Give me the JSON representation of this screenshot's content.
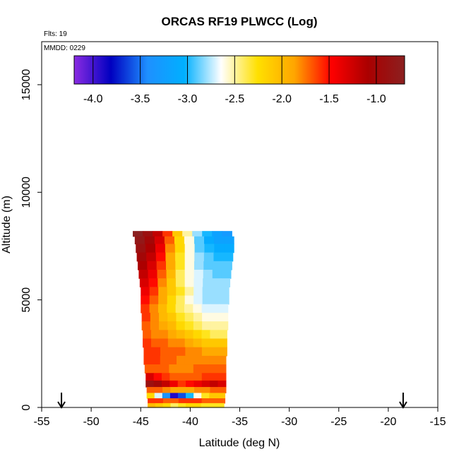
{
  "chart_data": {
    "type": "heatmap",
    "title": "ORCAS RF19 PLWCC (Log)",
    "flights_label": "Flts: 19",
    "date_label": "MMDD: 0229",
    "xlabel": "Latitude (deg N)",
    "ylabel": "Altitude (m)",
    "xlim": [
      -55,
      -15
    ],
    "ylim": [
      0,
      17000
    ],
    "x_ticks": [
      -55,
      -50,
      -45,
      -40,
      -35,
      -30,
      -25,
      -20,
      -15
    ],
    "x_tick_labels": [
      "-55",
      "-50",
      "-45",
      "-40",
      "-35",
      "-30",
      "-25",
      "-20",
      "-15"
    ],
    "y_ticks": [
      0,
      5000,
      10000,
      15000
    ],
    "y_tick_labels": [
      "0",
      "5000",
      "10000",
      "15000"
    ],
    "colorbar": {
      "range": [
        -4.2,
        -0.7
      ],
      "ticks": [
        -4.0,
        -3.5,
        -3.0,
        -2.5,
        -2.0,
        -1.5,
        -1.0
      ],
      "tick_labels": [
        "-4.0",
        "-3.5",
        "-3.0",
        "-2.5",
        "-2.0",
        "-1.5",
        "-1.0"
      ],
      "colors": [
        "#8a2be2",
        "#0000c0",
        "#1e90ff",
        "#00b0ff",
        "#ffffff",
        "#ffe000",
        "#ffa500",
        "#ff0000",
        "#aa0000",
        "#8b2020"
      ]
    },
    "arrows_lat": [
      -53,
      -18.5
    ],
    "profile": {
      "alt_top": 8200,
      "rows": [
        {
          "alt": 8100,
          "lat_min": -45.8,
          "lat_max": -35.8,
          "values": [
            -0.7,
            -0.9,
            -1.2,
            -1.6,
            -2.1,
            -2.5,
            -2.8,
            -3.0,
            -3.2,
            -3.3
          ]
        },
        {
          "alt": 7800,
          "lat_min": -45.6,
          "lat_max": -35.6,
          "values": [
            -0.8,
            -1.0,
            -1.3,
            -1.7,
            -2.2,
            -2.6,
            -2.9,
            -3.1,
            -3.2,
            -3.2
          ]
        },
        {
          "alt": 7400,
          "lat_min": -45.5,
          "lat_max": -35.6,
          "values": [
            -0.9,
            -1.1,
            -1.4,
            -1.8,
            -2.2,
            -2.6,
            -2.9,
            -3.0,
            -3.1,
            -3.1
          ]
        },
        {
          "alt": 7000,
          "lat_min": -45.4,
          "lat_max": -35.7,
          "values": [
            -1.0,
            -1.2,
            -1.5,
            -1.9,
            -2.3,
            -2.6,
            -2.8,
            -2.9,
            -3.0,
            -3.0
          ]
        },
        {
          "alt": 6600,
          "lat_min": -45.3,
          "lat_max": -35.8,
          "values": [
            -1.1,
            -1.3,
            -1.6,
            -1.9,
            -2.3,
            -2.6,
            -2.8,
            -2.9,
            -2.9,
            -2.9
          ]
        },
        {
          "alt": 6200,
          "lat_min": -45.2,
          "lat_max": -35.9,
          "values": [
            -1.2,
            -1.4,
            -1.7,
            -2.0,
            -2.4,
            -2.6,
            -2.7,
            -2.8,
            -2.9,
            -2.9
          ]
        },
        {
          "alt": 5800,
          "lat_min": -45.1,
          "lat_max": -36.0,
          "values": [
            -1.3,
            -1.5,
            -1.8,
            -2.1,
            -2.4,
            -2.6,
            -2.7,
            -2.8,
            -2.8,
            -2.8
          ]
        },
        {
          "alt": 5400,
          "lat_min": -45.0,
          "lat_max": -36.1,
          "values": [
            -1.4,
            -1.6,
            -1.9,
            -2.1,
            -2.3,
            -2.5,
            -2.7,
            -2.8,
            -2.8,
            -2.8
          ]
        },
        {
          "alt": 5000,
          "lat_min": -45.0,
          "lat_max": -36.1,
          "values": [
            -1.5,
            -1.7,
            -1.9,
            -2.2,
            -2.4,
            -2.6,
            -2.7,
            -2.8,
            -2.8,
            -2.8
          ]
        },
        {
          "alt": 4600,
          "lat_min": -45.0,
          "lat_max": -36.2,
          "values": [
            -1.6,
            -1.8,
            -2.0,
            -2.2,
            -2.4,
            -2.5,
            -2.6,
            -2.7,
            -2.7,
            -2.7
          ]
        },
        {
          "alt": 4200,
          "lat_min": -44.9,
          "lat_max": -36.2,
          "values": [
            -1.6,
            -1.8,
            -2.0,
            -2.1,
            -2.3,
            -2.4,
            -2.5,
            -2.6,
            -2.6,
            -2.6
          ]
        },
        {
          "alt": 3800,
          "lat_min": -44.9,
          "lat_max": -36.2,
          "values": [
            -1.7,
            -1.8,
            -1.9,
            -2.0,
            -2.2,
            -2.3,
            -2.4,
            -2.5,
            -2.5,
            -2.5
          ]
        },
        {
          "alt": 3400,
          "lat_min": -44.8,
          "lat_max": -36.3,
          "values": [
            -1.7,
            -1.8,
            -1.8,
            -1.9,
            -2.0,
            -2.1,
            -2.2,
            -2.3,
            -2.4,
            -2.4
          ]
        },
        {
          "alt": 3000,
          "lat_min": -44.8,
          "lat_max": -36.3,
          "values": [
            -1.6,
            -1.7,
            -1.7,
            -1.8,
            -1.8,
            -1.9,
            -2.0,
            -2.1,
            -2.1,
            -2.1
          ]
        },
        {
          "alt": 2600,
          "lat_min": -44.7,
          "lat_max": -36.3,
          "values": [
            -1.6,
            -1.6,
            -1.7,
            -1.7,
            -1.7,
            -1.8,
            -1.8,
            -1.9,
            -1.9,
            -1.9
          ]
        },
        {
          "alt": 2200,
          "lat_min": -44.7,
          "lat_max": -36.4,
          "values": [
            -1.6,
            -1.6,
            -1.7,
            -1.7,
            -1.8,
            -1.8,
            -1.8,
            -1.8,
            -1.8,
            -1.8
          ]
        },
        {
          "alt": 1800,
          "lat_min": -44.6,
          "lat_max": -36.4,
          "values": [
            -1.7,
            -1.7,
            -1.7,
            -1.8,
            -1.8,
            -1.8,
            -1.7,
            -1.7,
            -1.7,
            -1.7
          ]
        },
        {
          "alt": 1400,
          "lat_min": -44.5,
          "lat_max": -36.4,
          "values": [
            -1.3,
            -1.5,
            -1.6,
            -1.7,
            -1.7,
            -1.7,
            -1.7,
            -1.6,
            -1.6,
            -1.6
          ]
        },
        {
          "alt": 1100,
          "lat_min": -44.5,
          "lat_max": -36.4,
          "values": [
            -0.9,
            -1.0,
            -1.2,
            -1.4,
            -1.6,
            -1.5,
            -1.4,
            -1.3,
            -1.2,
            -1.3
          ]
        },
        {
          "alt": 800,
          "lat_min": -44.4,
          "lat_max": -36.4,
          "values": [
            -1.7,
            -1.7,
            -1.8,
            -1.9,
            -1.9,
            -1.9,
            -1.8,
            -1.8,
            -1.7,
            -1.7
          ]
        },
        {
          "alt": 550,
          "lat_min": -44.4,
          "lat_max": -36.5,
          "values": [
            -2.2,
            -2.7,
            -3.4,
            -3.9,
            -3.6,
            -3.0,
            -2.6,
            -2.3,
            -2.1,
            -2.1
          ]
        },
        {
          "alt": 300,
          "lat_min": -44.3,
          "lat_max": -36.5,
          "values": [
            -1.6,
            -1.6,
            -1.7,
            -1.7,
            -1.6,
            -1.6,
            -1.6,
            -1.7,
            -1.7,
            -1.7
          ]
        },
        {
          "alt": 100,
          "lat_min": -44.3,
          "lat_max": -36.6,
          "values": [
            -2.0,
            -2.1,
            -2.2,
            -2.4,
            -2.3,
            -2.2,
            -2.2,
            -2.3,
            -2.3,
            -2.3
          ]
        }
      ]
    }
  }
}
